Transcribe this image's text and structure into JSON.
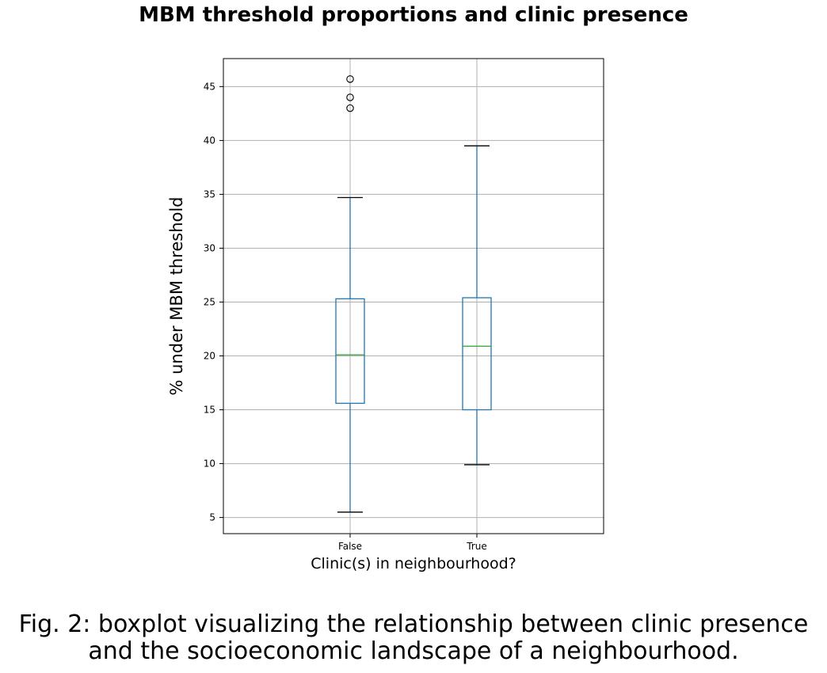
{
  "chart_data": {
    "type": "box",
    "title": "MBM threshold proportions and clinic presence",
    "xlabel": "Clinic(s) in neighbourhood?",
    "ylabel": "% under MBM threshold",
    "ylim": [
      3.5,
      47.6
    ],
    "yticks": [
      5,
      10,
      15,
      20,
      25,
      30,
      35,
      40,
      45
    ],
    "grid": true,
    "categories": [
      "False",
      "True"
    ],
    "boxes": [
      {
        "category": "False",
        "whisker_low": 5.5,
        "q1": 15.6,
        "median": 20.1,
        "q3": 25.3,
        "whisker_high": 34.7,
        "outliers": [
          43.0,
          44.0,
          45.7
        ]
      },
      {
        "category": "True",
        "whisker_low": 9.9,
        "q1": 15.0,
        "median": 20.9,
        "q3": 25.4,
        "whisker_high": 39.5,
        "outliers": []
      }
    ],
    "colors": {
      "box": "#1f77b4",
      "median": "#2ca02c",
      "cap": "#000000",
      "grid": "#b0b0b0"
    }
  },
  "caption": {
    "line1": "Fig. 2: boxplot visualizing the relationship between clinic presence",
    "line2": "and the socioeconomic landscape of a neighbourhood."
  }
}
